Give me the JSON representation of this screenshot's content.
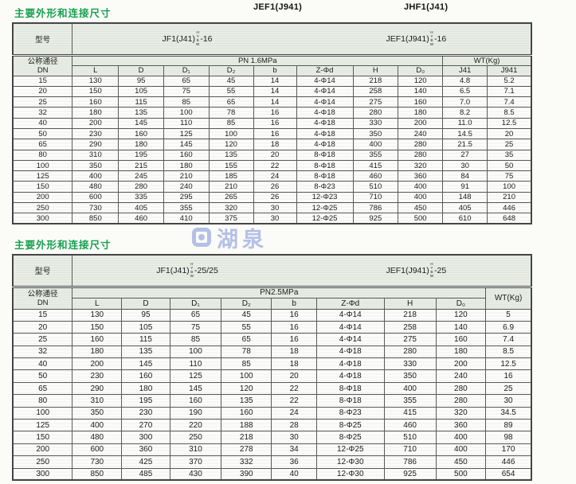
{
  "page": {
    "title1": "主要外形和连接尺寸",
    "title2": "主要外形和连接尺寸",
    "caption_left": "JEF1(J941)",
    "caption_right": "JHF1(J41)",
    "watermark_text": "湖泉"
  },
  "colors": {
    "title_green": "#17a050",
    "header_bg": "#e8eee5",
    "border": "#5a5a5a",
    "watermark_blue": "#9dade0"
  },
  "table1": {
    "model_label": "型号",
    "models": [
      {
        "prefix": "JF1(J41)",
        "stack": [
          "H",
          "Y",
          "B",
          "W"
        ],
        "suffix": "-16"
      },
      {
        "prefix": "JEF1(J941)",
        "stack": [
          "H",
          "Y",
          "B",
          "W"
        ],
        "suffix": "-16"
      }
    ],
    "dn_label_line1": "公称通径",
    "dn_label_line2": "DN",
    "pn_label": "PN 1.6MPa",
    "wt_label": "WT(Kg)",
    "columns": [
      "L",
      "D",
      "D₁",
      "D₂",
      "b",
      "Z-Φd",
      "H",
      "D₀"
    ],
    "wt_columns": [
      "J41",
      "J941"
    ],
    "rows": [
      [
        "15",
        "130",
        "95",
        "65",
        "45",
        "14",
        "4-Φ14",
        "218",
        "120",
        "4.8",
        "5.2"
      ],
      [
        "20",
        "150",
        "105",
        "75",
        "55",
        "14",
        "4-Φ14",
        "258",
        "140",
        "6.5",
        "7.1"
      ],
      [
        "25",
        "160",
        "115",
        "85",
        "65",
        "14",
        "4-Φ14",
        "275",
        "160",
        "7.0",
        "7.4"
      ],
      [
        "32",
        "180",
        "135",
        "100",
        "78",
        "16",
        "4-Φ18",
        "280",
        "180",
        "8.2",
        "8.5"
      ],
      [
        "40",
        "200",
        "145",
        "110",
        "85",
        "16",
        "4-Φ18",
        "330",
        "200",
        "11.0",
        "12.5"
      ],
      [
        "50",
        "230",
        "160",
        "125",
        "100",
        "16",
        "4-Φ18",
        "350",
        "240",
        "14.5",
        "20"
      ],
      [
        "65",
        "290",
        "180",
        "145",
        "120",
        "18",
        "4-Φ18",
        "400",
        "280",
        "21.5",
        "25"
      ],
      [
        "80",
        "310",
        "195",
        "160",
        "135",
        "20",
        "8-Φ18",
        "355",
        "280",
        "27",
        "35"
      ],
      [
        "100",
        "350",
        "215",
        "180",
        "155",
        "22",
        "8-Φ18",
        "415",
        "320",
        "30",
        "50"
      ],
      [
        "125",
        "400",
        "245",
        "210",
        "185",
        "24",
        "8-Φ18",
        "460",
        "360",
        "84",
        "75"
      ],
      [
        "150",
        "480",
        "280",
        "240",
        "210",
        "26",
        "8-Φ23",
        "510",
        "400",
        "91",
        "100"
      ],
      [
        "200",
        "600",
        "335",
        "295",
        "265",
        "26",
        "12-Φ23",
        "710",
        "400",
        "148",
        "210"
      ],
      [
        "250",
        "730",
        "405",
        "355",
        "320",
        "30",
        "12-Φ25",
        "786",
        "450",
        "405",
        "446"
      ],
      [
        "300",
        "850",
        "460",
        "410",
        "375",
        "30",
        "12-Φ25",
        "925",
        "500",
        "610",
        "648"
      ]
    ]
  },
  "table2": {
    "model_label": "型号",
    "models": [
      {
        "prefix": "JF1(J41)",
        "stack": [
          "H",
          "Y",
          "B",
          "W"
        ],
        "suffix": "-25/25"
      },
      {
        "prefix": "JEF1(J941)",
        "stack": [
          "H",
          "Y",
          "B",
          "W"
        ],
        "suffix": "-25"
      }
    ],
    "dn_label_line1": "公称通径",
    "dn_label_line2": "DN",
    "pn_label": "PN2.5MPa",
    "wt_label": "WT(Kg)",
    "columns": [
      "L",
      "D",
      "D₁",
      "D₂",
      "b",
      "Z-Φd",
      "H",
      "D₀"
    ],
    "rows": [
      [
        "15",
        "130",
        "95",
        "65",
        "45",
        "16",
        "4-Φ14",
        "218",
        "120",
        "5"
      ],
      [
        "20",
        "150",
        "105",
        "75",
        "55",
        "16",
        "4-Φ14",
        "258",
        "140",
        "6.9"
      ],
      [
        "25",
        "160",
        "115",
        "85",
        "65",
        "16",
        "4-Φ14",
        "275",
        "160",
        "7.4"
      ],
      [
        "32",
        "180",
        "135",
        "100",
        "78",
        "18",
        "4-Φ18",
        "280",
        "180",
        "8.5"
      ],
      [
        "40",
        "200",
        "145",
        "110",
        "85",
        "18",
        "4-Φ18",
        "330",
        "200",
        "12.5"
      ],
      [
        "50",
        "230",
        "160",
        "125",
        "100",
        "20",
        "4-Φ18",
        "350",
        "240",
        "16"
      ],
      [
        "65",
        "290",
        "180",
        "145",
        "120",
        "22",
        "8-Φ18",
        "400",
        "280",
        "25"
      ],
      [
        "80",
        "310",
        "195",
        "160",
        "135",
        "22",
        "8-Φ18",
        "355",
        "280",
        "30"
      ],
      [
        "100",
        "350",
        "230",
        "190",
        "160",
        "24",
        "8-Φ23",
        "415",
        "320",
        "34.5"
      ],
      [
        "125",
        "400",
        "270",
        "220",
        "188",
        "28",
        "8-Φ25",
        "460",
        "360",
        "89"
      ],
      [
        "150",
        "480",
        "300",
        "250",
        "218",
        "30",
        "8-Φ25",
        "510",
        "400",
        "98"
      ],
      [
        "200",
        "600",
        "360",
        "310",
        "278",
        "34",
        "12-Φ25",
        "710",
        "400",
        "170"
      ],
      [
        "250",
        "730",
        "425",
        "370",
        "332",
        "36",
        "12-Φ30",
        "786",
        "450",
        "446"
      ],
      [
        "300",
        "850",
        "485",
        "430",
        "390",
        "40",
        "12-Φ30",
        "925",
        "500",
        "654"
      ]
    ]
  }
}
